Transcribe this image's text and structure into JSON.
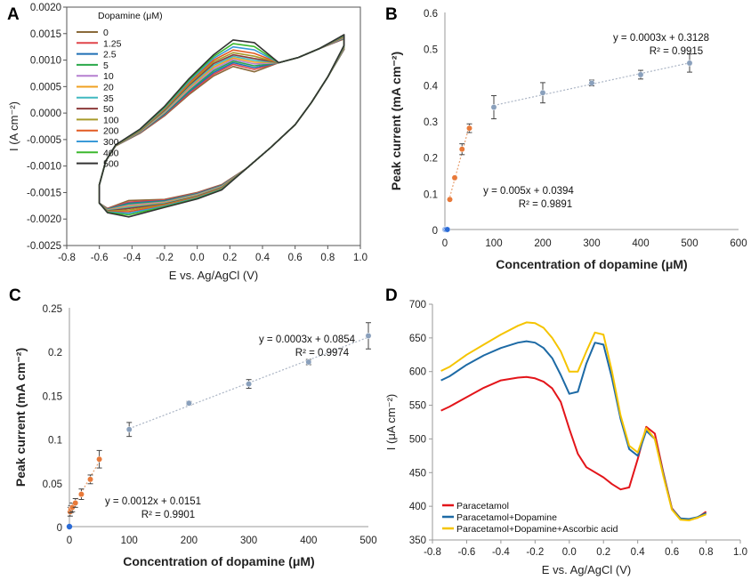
{
  "figure": {
    "panel_letters": [
      "A",
      "B",
      "C",
      "D"
    ]
  },
  "chart_data": [
    {
      "panel": "A",
      "type": "line",
      "title": "",
      "xlabel": "E vs. Ag/AgCl (V)",
      "ylabel": "I (A cm⁻²)",
      "xlim": [
        -0.8,
        1.0
      ],
      "ylim": [
        -0.0025,
        0.002
      ],
      "xticks": [
        "-0.8",
        "-0.6",
        "-0.4",
        "-0.2",
        "0.0",
        "0.2",
        "0.4",
        "0.6",
        "0.8",
        "1.0"
      ],
      "yticks": [
        "-0.0025",
        "-0.0020",
        "-0.0015",
        "-0.0010",
        "-0.0005",
        "0.0000",
        "0.0005",
        "0.0010",
        "0.0015",
        "0.0020"
      ],
      "legend_title": "Dopamine (μM)",
      "legend_position": "top-left",
      "series": [
        {
          "name": "0",
          "color": "#8a6a3a",
          "fwd_peak": 0.00088,
          "rev_peak": -0.00165
        },
        {
          "name": "1.25",
          "color": "#e0454a",
          "fwd_peak": 0.00092,
          "rev_peak": -0.00168
        },
        {
          "name": "2.5",
          "color": "#1f6fb5",
          "fwd_peak": 0.00095,
          "rev_peak": -0.0017
        },
        {
          "name": "5",
          "color": "#2aa84a",
          "fwd_peak": 0.00098,
          "rev_peak": -0.00172
        },
        {
          "name": "10",
          "color": "#b57fd0",
          "fwd_peak": 0.00101,
          "rev_peak": -0.00174
        },
        {
          "name": "20",
          "color": "#f0a020",
          "fwd_peak": 0.00104,
          "rev_peak": -0.00176
        },
        {
          "name": "35",
          "color": "#40b8c0",
          "fwd_peak": 0.00107,
          "rev_peak": -0.00178
        },
        {
          "name": "50",
          "color": "#8b3a3a",
          "fwd_peak": 0.0011,
          "rev_peak": -0.0018
        },
        {
          "name": "100",
          "color": "#a89a2a",
          "fwd_peak": 0.00114,
          "rev_peak": -0.00183
        },
        {
          "name": "200",
          "color": "#e25a22",
          "fwd_peak": 0.00119,
          "rev_peak": -0.00186
        },
        {
          "name": "300",
          "color": "#3a9ad8",
          "fwd_peak": 0.00125,
          "rev_peak": -0.00189
        },
        {
          "name": "400",
          "color": "#3cb82e",
          "fwd_peak": 0.00131,
          "rev_peak": -0.00192
        },
        {
          "name": "500",
          "color": "#333333",
          "fwd_peak": 0.00138,
          "rev_peak": -0.00196
        }
      ]
    },
    {
      "panel": "B",
      "type": "scatter",
      "title": "",
      "xlabel": "Concentration of dopamine (μM)",
      "ylabel": "Peak current (mA cm⁻²)",
      "xlim": [
        0,
        600
      ],
      "ylim": [
        0,
        0.6
      ],
      "xticks": [
        "0",
        "100",
        "200",
        "300",
        "400",
        "500",
        "600"
      ],
      "yticks": [
        "0",
        "0.1",
        "0.2",
        "0.3",
        "0.4",
        "0.5",
        "0.6"
      ],
      "series": [
        {
          "name": "low",
          "color": "#e87a3a",
          "x": [
            0,
            1.25,
            2.5,
            5,
            10,
            20,
            35,
            50
          ],
          "y": [
            0,
            0,
            0,
            0,
            0.083,
            0.143,
            0.222,
            0.28
          ],
          "err": [
            0,
            0,
            0,
            0,
            0,
            0,
            0.015,
            0.012
          ]
        },
        {
          "name": "high",
          "color": "#8aa0bc",
          "x": [
            100,
            200,
            300,
            400,
            500
          ],
          "y": [
            0.338,
            0.378,
            0.405,
            0.428,
            0.46
          ],
          "err": [
            0.032,
            0.028,
            0.008,
            0.012,
            0.025
          ]
        }
      ],
      "annotations": [
        "y = 0.0003x + 0.3128",
        "R² = 0.9915",
        "y = 0.005x + 0.0394",
        "R² = 0.9891"
      ]
    },
    {
      "panel": "C",
      "type": "scatter",
      "title": "",
      "xlabel": "Concentration of dopamine (μM)",
      "ylabel": "Peak current (mA cm⁻²)",
      "xlim": [
        0,
        500
      ],
      "ylim": [
        0,
        0.25
      ],
      "xticks": [
        "0",
        "100",
        "200",
        "300",
        "400",
        "500"
      ],
      "yticks": [
        "0",
        "0.05",
        "0.1",
        "0.15",
        "0.2",
        "0.25"
      ],
      "series": [
        {
          "name": "low",
          "color": "#e87a3a",
          "x": [
            1.25,
            2.5,
            5,
            10,
            20,
            35,
            50
          ],
          "y": [
            0.017,
            0.02,
            0.022,
            0.027,
            0.037,
            0.054,
            0.077
          ],
          "err": [
            0.005,
            0.004,
            0.005,
            0.005,
            0.006,
            0.005,
            0.01
          ]
        },
        {
          "name": "high",
          "color": "#8aa0bc",
          "x": [
            100,
            200,
            300,
            400,
            500
          ],
          "y": [
            0.111,
            0.141,
            0.163,
            0.188,
            0.218
          ],
          "err": [
            0.008,
            0.002,
            0.005,
            0.003,
            0.015
          ]
        }
      ],
      "origin_point": {
        "x": 0,
        "y": 0,
        "color": "#2b6bd6"
      },
      "annotations": [
        "y = 0.0003x + 0.0854",
        "R² = 0.9974",
        "y = 0.0012x + 0.0151",
        "R² = 0.9901"
      ]
    },
    {
      "panel": "D",
      "type": "line",
      "title": "",
      "xlabel": "E vs. Ag/AgCl (V)",
      "ylabel": "I (μA cm⁻²)",
      "xlim": [
        -0.8,
        1.0
      ],
      "ylim": [
        350,
        700
      ],
      "xticks": [
        "-0.8",
        "-0.6",
        "-0.4",
        "-0.2",
        "0.0",
        "0.2",
        "0.4",
        "0.6",
        "0.8",
        "1.0"
      ],
      "yticks": [
        "350",
        "400",
        "450",
        "500",
        "550",
        "600",
        "650",
        "700"
      ],
      "legend_position": "bottom-left",
      "series": [
        {
          "name": "Paracetamol",
          "color": "#e3151a",
          "x": [
            -0.75,
            -0.7,
            -0.6,
            -0.5,
            -0.4,
            -0.3,
            -0.25,
            -0.2,
            -0.15,
            -0.1,
            -0.05,
            0.0,
            0.05,
            0.1,
            0.2,
            0.25,
            0.3,
            0.35,
            0.4,
            0.45,
            0.5,
            0.55,
            0.6,
            0.65,
            0.7,
            0.75,
            0.8
          ],
          "y": [
            542,
            548,
            562,
            576,
            587,
            591,
            592,
            590,
            585,
            575,
            555,
            515,
            478,
            458,
            443,
            433,
            425,
            428,
            470,
            518,
            508,
            450,
            397,
            382,
            380,
            383,
            392
          ]
        },
        {
          "name": "Paracetamol+Dopamine",
          "color": "#1d6aa5",
          "x": [
            -0.75,
            -0.7,
            -0.6,
            -0.5,
            -0.4,
            -0.3,
            -0.25,
            -0.2,
            -0.15,
            -0.1,
            -0.05,
            0.0,
            0.05,
            0.1,
            0.15,
            0.2,
            0.25,
            0.3,
            0.35,
            0.4,
            0.45,
            0.5,
            0.55,
            0.6,
            0.65,
            0.7,
            0.75,
            0.8
          ],
          "y": [
            587,
            593,
            610,
            624,
            635,
            643,
            645,
            643,
            635,
            620,
            595,
            567,
            570,
            612,
            643,
            640,
            590,
            530,
            485,
            475,
            512,
            500,
            448,
            396,
            382,
            381,
            384,
            390
          ]
        },
        {
          "name": "Paracetamol+Dopamine+Ascorbic acid",
          "color": "#f5c400",
          "x": [
            -0.75,
            -0.7,
            -0.6,
            -0.5,
            -0.4,
            -0.3,
            -0.25,
            -0.2,
            -0.15,
            -0.1,
            -0.05,
            0.0,
            0.05,
            0.1,
            0.15,
            0.2,
            0.25,
            0.3,
            0.35,
            0.4,
            0.45,
            0.5,
            0.55,
            0.6,
            0.65,
            0.7,
            0.75,
            0.8
          ],
          "y": [
            601,
            607,
            625,
            640,
            655,
            668,
            673,
            672,
            665,
            650,
            630,
            600,
            600,
            630,
            658,
            655,
            600,
            535,
            490,
            480,
            516,
            500,
            445,
            395,
            380,
            379,
            383,
            388
          ]
        }
      ]
    }
  ]
}
